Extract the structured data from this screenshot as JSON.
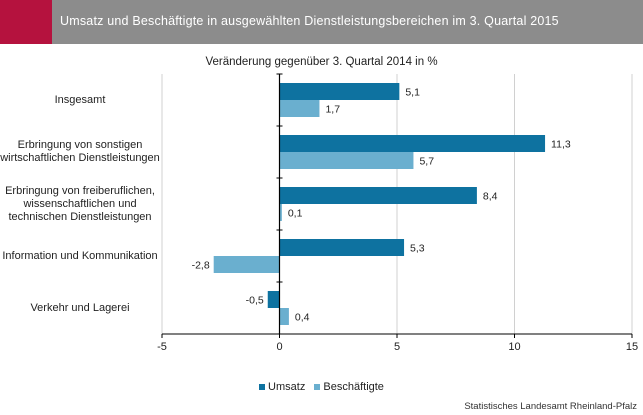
{
  "header": {
    "title": "Umsatz und Beschäftigte in ausgewählten Dienstleistungsbereichen im 3. Quartal 2015"
  },
  "source": "Statistisches Landesamt Rheinland-Pfalz",
  "colors": {
    "header_bg": "#8c8c8c",
    "accent": "#b5123e",
    "umsatz": "#0e72a0",
    "beschaeftigte": "#6aafcf"
  },
  "chart_data": {
    "type": "bar",
    "orientation": "horizontal",
    "title": "Veränderung gegenüber 3. Quartal 2014 in %",
    "categories": [
      [
        "Insgesamt"
      ],
      [
        "Erbringung von sonstigen",
        "wirtschaftlichen Dienstleistungen"
      ],
      [
        "Erbringung von freiberuflichen,",
        "wissenschaftlichen und",
        "technischen Dienstleistungen"
      ],
      [
        "Information und Kommunikation"
      ],
      [
        "Verkehr und Lagerei"
      ]
    ],
    "series": [
      {
        "name": "Umsatz",
        "values": [
          5.1,
          11.3,
          8.4,
          5.3,
          -0.5
        ],
        "labels": [
          "5,1",
          "11,3",
          "8,4",
          "5,3",
          "-0,5"
        ]
      },
      {
        "name": "Beschäftigte",
        "values": [
          1.7,
          5.7,
          0.1,
          -2.8,
          0.4
        ],
        "labels": [
          "1,7",
          "5,7",
          "0,1",
          "-2,8",
          "0,4"
        ]
      }
    ],
    "xlim": [
      -5,
      15
    ],
    "xticks": [
      -5,
      0,
      5,
      10,
      15
    ],
    "xtick_labels": [
      "-5",
      "0",
      "5",
      "10",
      "15"
    ],
    "grid": "vertical",
    "legend": "bottom"
  }
}
